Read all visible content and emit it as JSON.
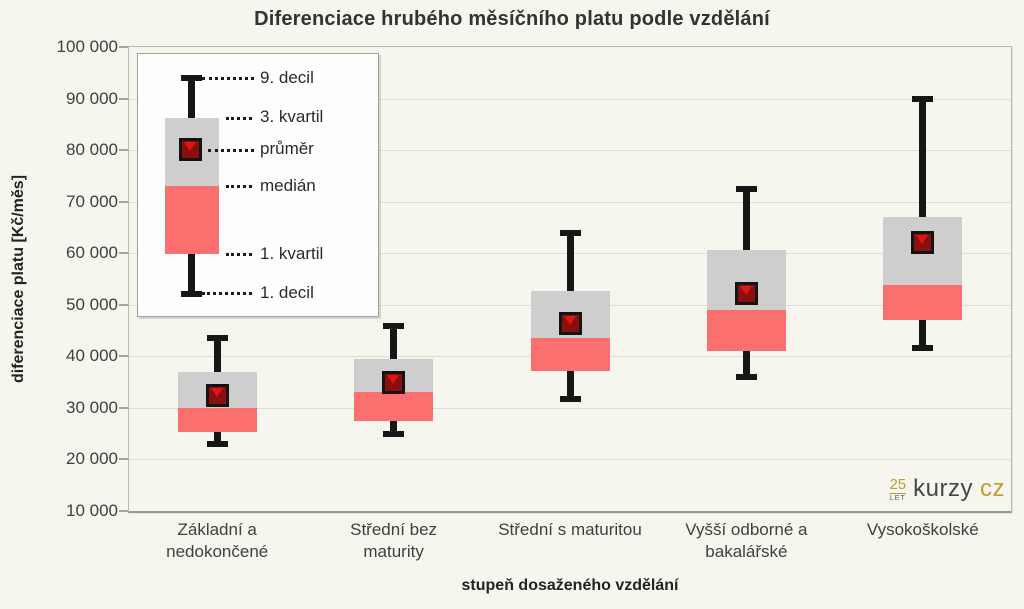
{
  "title": "Diferenciace hrubého měsíčního platu podle vzdělání",
  "y_axis": {
    "label": "diferenciace platu [Kč/měs]",
    "ticks": [
      "100 000",
      "90 000",
      "80 000",
      "70 000",
      "60 000",
      "50 000",
      "40 000",
      "30 000",
      "20 000",
      "10 000"
    ]
  },
  "x_axis": {
    "label": "stupeň dosaženého vzdělání"
  },
  "legend": {
    "items": [
      "9. decil",
      "3. kvartil",
      "průměr",
      "medián",
      "1. kvartil",
      "1. decil"
    ]
  },
  "logo": {
    "years": "25",
    "let_label": "LET",
    "brand": "kurzy",
    "tld": "cz"
  },
  "colors": {
    "background": "#f7f6ee",
    "grid": "#deddd5",
    "box_upper": "#cecece",
    "box_lower": "#fc6f6f",
    "whisker": "#161616",
    "mean_fill": "#8c0f0f",
    "mean_highlight": "#dd1515",
    "brand_gold": "#c79a2f",
    "brand_gray": "#474747"
  },
  "chart_data": {
    "type": "boxplot",
    "title": "Diferenciace hrubého měsíčního platu podle vzdělání",
    "xlabel": "stupeň dosaženého vzdělání",
    "ylabel": "diferenciace platu [Kč/měs]",
    "ylim": [
      10000,
      100000
    ],
    "ytick_step": 10000,
    "grid": true,
    "legend_position": "top-left",
    "categories": [
      "Základní a nedokončené",
      "Střední bez maturity",
      "Střední s maturitou",
      "Vyšší odborné a bakalářské",
      "Vysokoškolské"
    ],
    "boxes": [
      {
        "category": "Základní a nedokončené",
        "label": "Základní a\nnedokončené",
        "decil1": 22900,
        "kvartil1": 25300,
        "median": 29900,
        "prumer": 32400,
        "kvartil3": 37000,
        "decil9": 43600
      },
      {
        "category": "Střední bez maturity",
        "label": "Střední bez\nmaturity",
        "decil1": 25000,
        "kvartil1": 27500,
        "median": 33100,
        "prumer": 34900,
        "kvartil3": 39500,
        "decil9": 45900
      },
      {
        "category": "Střední s maturitou",
        "label": "Střední s maturitou",
        "decil1": 31800,
        "kvartil1": 37200,
        "median": 43500,
        "prumer": 46400,
        "kvartil3": 52600,
        "decil9": 64000
      },
      {
        "category": "Vyšší odborné a bakalářské",
        "label": "Vyšší odborné a\nbakalářské",
        "decil1": 36000,
        "kvartil1": 41000,
        "median": 48900,
        "prumer": 52200,
        "kvartil3": 60700,
        "decil9": 72500
      },
      {
        "category": "Vysokoškolské",
        "label": "Vysokoškolské",
        "decil1": 41600,
        "kvartil1": 47000,
        "median": 53800,
        "prumer": 62000,
        "kvartil3": 67000,
        "decil9": 90000
      }
    ]
  }
}
